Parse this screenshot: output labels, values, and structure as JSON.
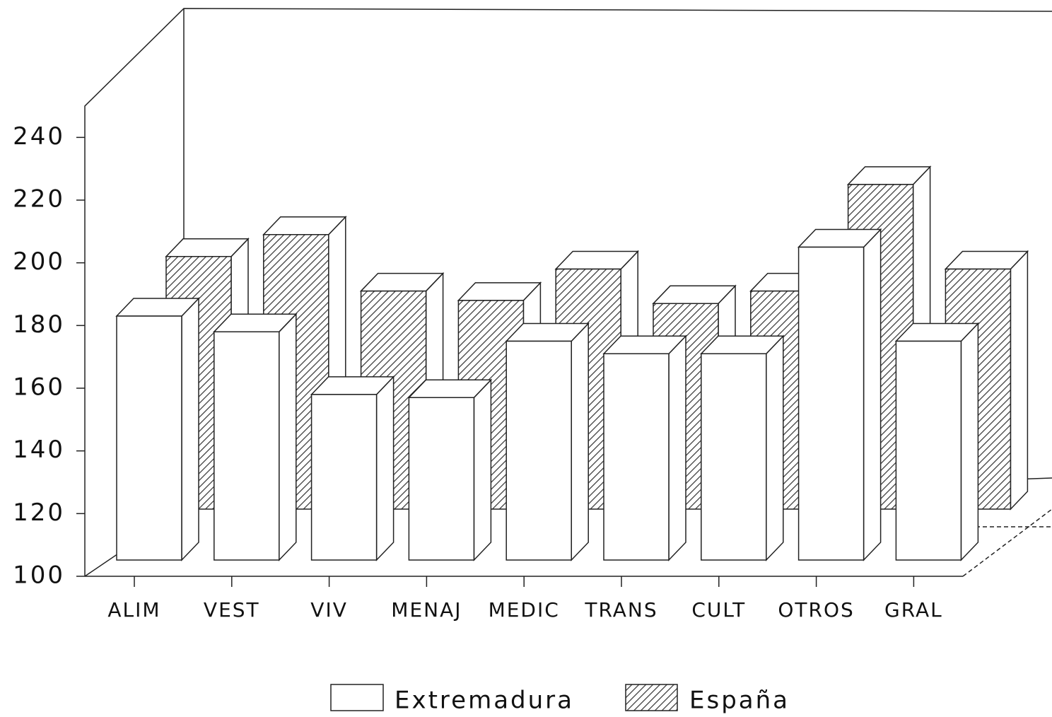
{
  "chart_data": {
    "type": "bar3d",
    "categories": [
      "ALIM",
      "VEST",
      "VIV",
      "MENAJ",
      "MEDIC",
      "TRANS",
      "CULT",
      "OTROS",
      "GRAL"
    ],
    "series": [
      {
        "name": "Extremadura",
        "color": "#ffffff",
        "values": [
          183,
          178,
          158,
          157,
          175,
          171,
          171,
          205,
          175
        ]
      },
      {
        "name": "España",
        "color": "#333333",
        "values": [
          202,
          209,
          191,
          188,
          198,
          187,
          191,
          225,
          198
        ]
      }
    ],
    "ylim": [
      100,
      250
    ],
    "yticks": [
      100,
      120,
      140,
      160,
      180,
      200,
      220,
      240
    ],
    "grid": false
  }
}
